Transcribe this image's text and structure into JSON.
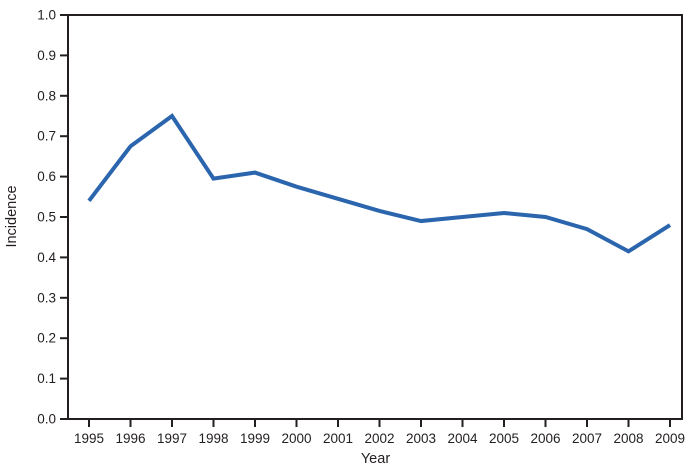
{
  "chart_data": {
    "type": "line",
    "title": "",
    "xlabel": "Year",
    "ylabel": "Incidence",
    "x": [
      1995,
      1996,
      1997,
      1998,
      1999,
      2000,
      2001,
      2002,
      2003,
      2004,
      2005,
      2006,
      2007,
      2008,
      2009
    ],
    "x_tick_labels": [
      "1995",
      "1996",
      "1997",
      "1998",
      "1999",
      "2000",
      "2001",
      "2002",
      "2003",
      "2004",
      "2005",
      "2006",
      "2007",
      "2008",
      "2009"
    ],
    "series": [
      {
        "name": "Incidence",
        "values": [
          0.54,
          0.675,
          0.75,
          0.595,
          0.61,
          0.575,
          0.545,
          0.515,
          0.49,
          0.5,
          0.51,
          0.5,
          0.47,
          0.415,
          0.48
        ]
      }
    ],
    "ylim": [
      0.0,
      1.0
    ],
    "ytick_step": 0.1,
    "y_tick_labels": [
      "0.0",
      "0.1",
      "0.2",
      "0.3",
      "0.4",
      "0.5",
      "0.6",
      "0.7",
      "0.8",
      "0.9",
      "1.0"
    ],
    "grid": false,
    "legend": "none",
    "colors": {
      "line": "#2a65ad",
      "axis": "#231f20",
      "text": "#231f20",
      "background": "#ffffff"
    }
  }
}
